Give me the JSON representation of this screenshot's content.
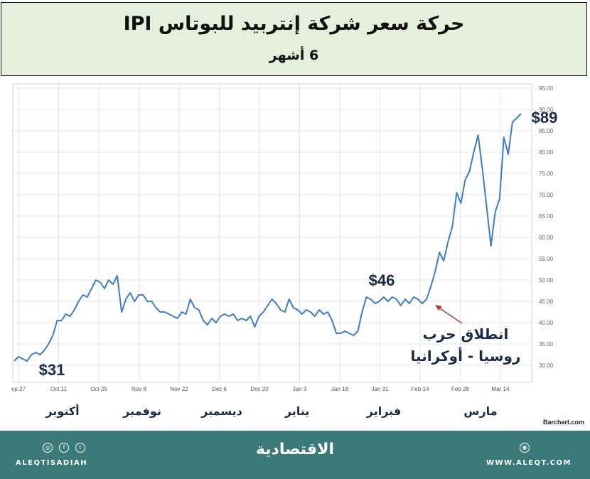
{
  "header": {
    "title": "حركة سعر شركة إنتربيد للبوتاس IPI",
    "subtitle": "6 أشهر"
  },
  "chart_data": {
    "type": "line",
    "title": "حركة سعر شركة إنتربيد للبوتاس IPI",
    "subtitle": "6 أشهر",
    "ylim": [
      26,
      96
    ],
    "y_ticks": [
      "95.00",
      "90.00",
      "85.00",
      "80.00",
      "75.00",
      "70.00",
      "65.00",
      "60.00",
      "55.00",
      "50.00",
      "45.00",
      "40.00",
      "35.00",
      "30.00"
    ],
    "y_tick_values": [
      95,
      90,
      85,
      80,
      75,
      70,
      65,
      60,
      55,
      50,
      45,
      40,
      35,
      30
    ],
    "x_tick_labels": [
      "ep 27",
      "Oct 11",
      "Oct 25",
      "Nov 8",
      "Nov 22",
      "Dec 6",
      "Dec 20",
      "Jan 3",
      "Jan 18",
      "Jan 31",
      "Feb 14",
      "Feb 28",
      "Mar 14"
    ],
    "month_labels": [
      "أكتوبر",
      "نوفمبر",
      "ديسمبر",
      "يناير",
      "فبراير",
      "مارس"
    ],
    "grid": true,
    "line_color": "#3d7cc9",
    "series": [
      {
        "values": [
          31,
          32,
          31.5,
          31,
          32.5,
          33,
          32.5,
          33.5,
          35,
          37,
          40.5,
          40.5,
          42,
          41.5,
          43,
          45,
          46.5,
          46,
          48,
          50,
          49.5,
          48,
          50,
          49,
          51,
          42.5,
          45.5,
          47,
          45,
          46.5,
          46.5,
          45,
          45,
          43.5,
          42.5,
          42.5,
          42,
          41.5,
          41,
          42.5,
          42,
          45.5,
          43.5,
          43,
          40.5,
          39.5,
          41,
          40,
          41.5,
          42,
          41.5,
          42,
          40.5,
          41,
          40.5,
          41.5,
          39,
          41.5,
          42.5,
          44,
          45.5,
          44.5,
          43,
          42.5,
          45.5,
          43.5,
          43,
          42,
          43,
          42.5,
          41.5,
          43,
          42,
          42.5,
          40.5,
          37.5,
          37.5,
          38,
          37.5,
          37,
          38,
          42.5,
          46,
          45.5,
          44.5,
          45,
          46,
          45,
          46,
          45.5,
          44,
          45.5,
          44.5,
          46,
          45.5,
          44.5,
          45.5,
          48.5,
          52,
          56.5,
          54.5,
          59,
          62.5,
          70.5,
          68,
          73.5,
          75.5,
          80,
          84,
          76,
          67,
          58,
          66,
          69,
          83.5,
          79.5,
          87,
          88,
          89
        ]
      }
    ]
  },
  "annotations": {
    "start_price": "$31",
    "feb_price": "$46",
    "end_price": "$89",
    "event_line1": "انطلاق حرب",
    "event_line2": "روسيا - أوكرانيا"
  },
  "source": "Barchart.com",
  "footer": {
    "social_handle": "ALEQTISADIAH",
    "logo": "الاقتصادية",
    "website": "WWW.ALEQT.COM",
    "social_icons": [
      "instagram-icon",
      "facebook-icon",
      "twitter-icon"
    ],
    "web_icon": "globe-icon",
    "background_color": "#3a7a78"
  }
}
